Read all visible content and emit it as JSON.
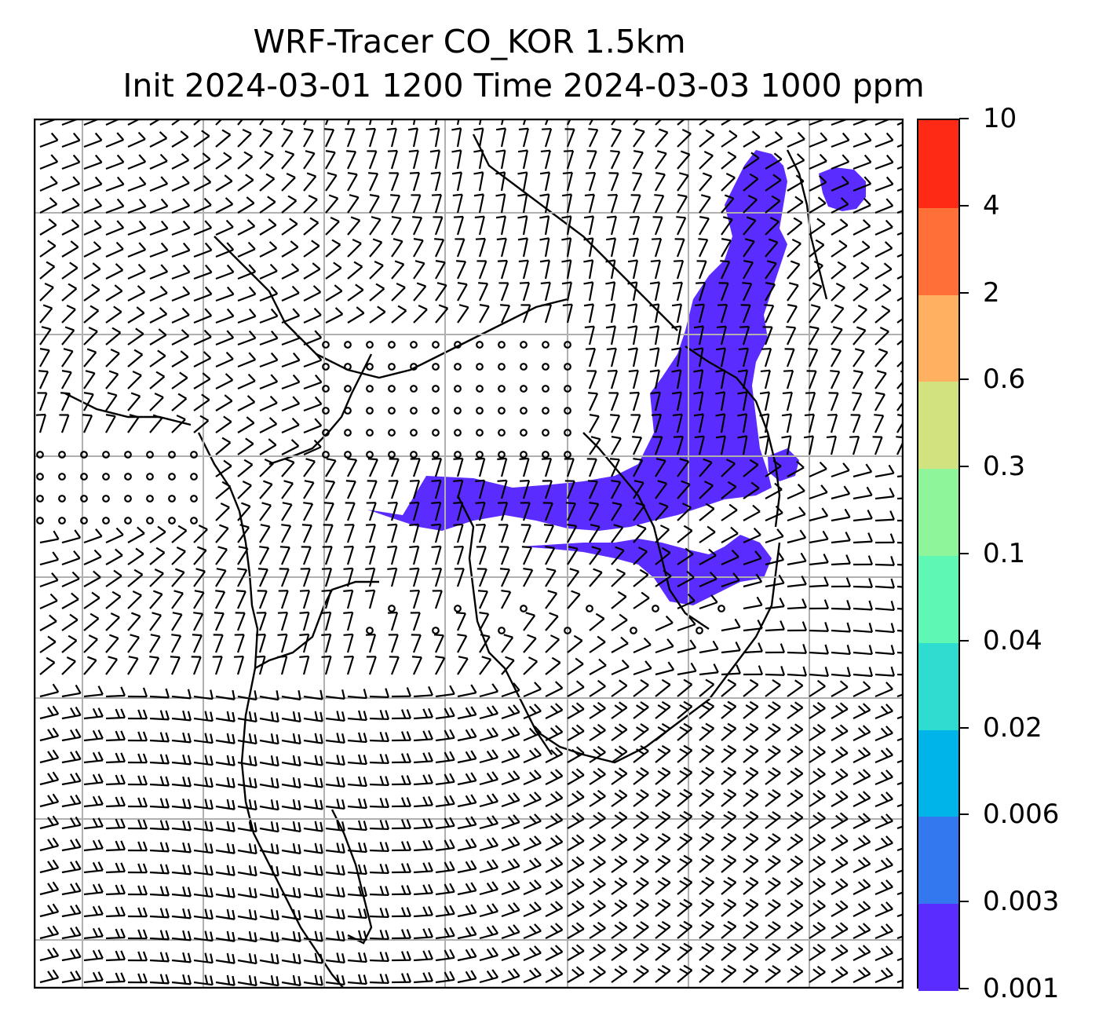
{
  "figure": {
    "title_line1": "WRF-Tracer CO_KOR 1.5km",
    "title_line2": "Init 2024-03-01 1200 Time 2024-03-03 1000 ppm"
  },
  "map": {
    "variable": "CO_KOR tracer",
    "overlay": "wind barbs",
    "gridlines": true,
    "coastlines": true,
    "plume_color": "#5b2cff"
  },
  "colorbar": {
    "orientation": "vertical",
    "tick_labels": [
      "0.001",
      "0.003",
      "0.006",
      "0.02",
      "0.04",
      "0.1",
      "0.3",
      "0.6",
      "2",
      "4",
      "10"
    ],
    "colors": [
      "#5b2cff",
      "#3478f0",
      "#00b3e8",
      "#2fdcd0",
      "#5ef7b4",
      "#8ff59a",
      "#d2e27e",
      "#ffb060",
      "#ff7038",
      "#ff2a16"
    ]
  }
}
